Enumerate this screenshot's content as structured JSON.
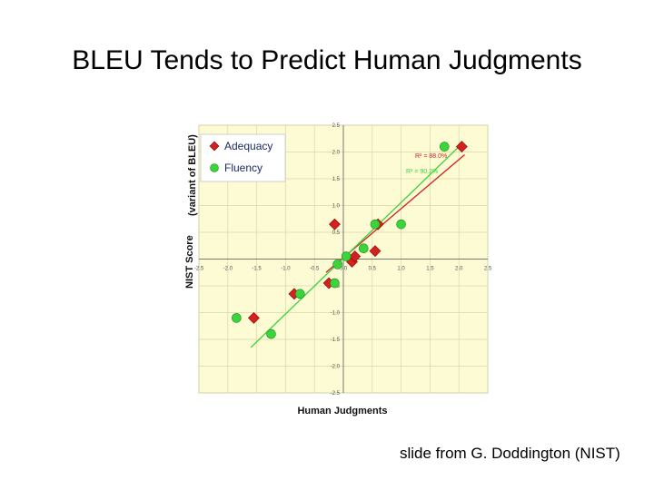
{
  "slide": {
    "title": "BLEU Tends to Predict Human Judgments",
    "credit": "slide from G. Doddington (NIST)"
  },
  "chart_data": {
    "type": "scatter",
    "title": "",
    "xlabel": "Human Judgments",
    "ylabel": "NIST Score",
    "ylabel_note": "(variant of BLEU)",
    "xlim": [
      -2.5,
      2.5
    ],
    "ylim": [
      -2.5,
      2.5
    ],
    "xticks": [
      "-2.5",
      "-2.0",
      "-1.5",
      "-1.0",
      "-0.5",
      "0.0",
      "0.5",
      "1.0",
      "1.5",
      "2.0",
      "2.5"
    ],
    "yticks": [
      "2.5",
      "2.0",
      "1.5",
      "1.0",
      "0.5",
      "0.0",
      "-0.5",
      "-1.0",
      "-1.5",
      "-2.0",
      "-2.5"
    ],
    "grid": true,
    "background": "#fdfbd4",
    "legend_position": "top-left",
    "series": [
      {
        "name": "Adequacy",
        "marker": "diamond",
        "color": "#d42020",
        "x": [
          -1.55,
          -0.85,
          -0.25,
          -0.15,
          0.15,
          0.2,
          0.55,
          0.6,
          2.05
        ],
        "y": [
          -1.1,
          -0.65,
          -0.45,
          0.65,
          -0.05,
          0.05,
          0.15,
          0.65,
          2.1
        ],
        "r2_label": "R² = 88.0%",
        "fit": {
          "x": [
            -0.3,
            2.1
          ],
          "y": [
            -0.25,
            1.95
          ]
        }
      },
      {
        "name": "Fluency",
        "marker": "circle",
        "color": "#3cd43c",
        "x": [
          -1.85,
          -1.25,
          -0.75,
          -0.15,
          -0.1,
          0.05,
          0.35,
          0.55,
          1.0,
          1.75
        ],
        "y": [
          -1.1,
          -1.4,
          -0.65,
          -0.45,
          -0.1,
          0.05,
          0.2,
          0.65,
          0.65,
          2.1
        ],
        "r2_label": "R² = 90.2%",
        "fit": {
          "x": [
            -1.6,
            2.05
          ],
          "y": [
            -1.65,
            2.15
          ]
        }
      }
    ]
  }
}
